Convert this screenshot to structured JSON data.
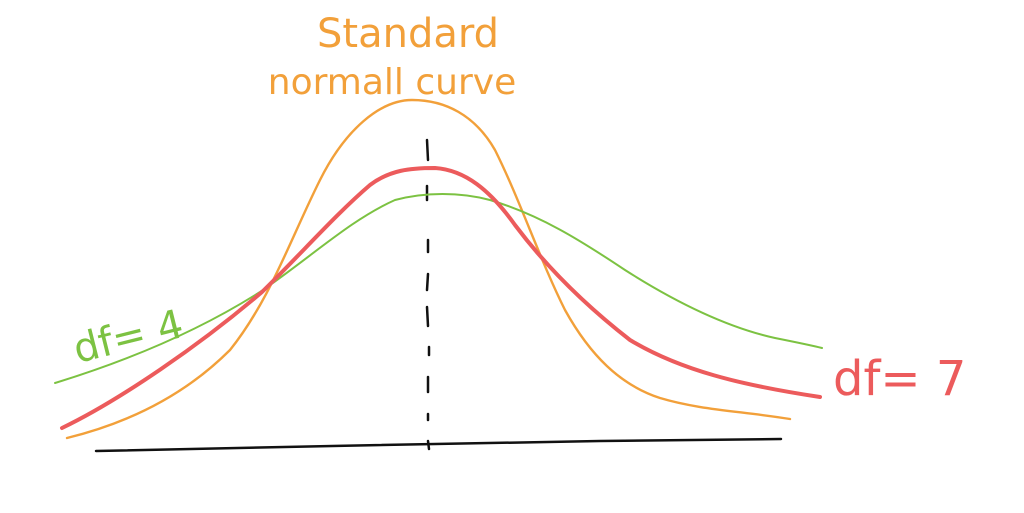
{
  "diagram": {
    "colors": {
      "normal": "#F2A03A",
      "t7": "#EC5B5C",
      "t4": "#7CC242",
      "axis": "#111111",
      "mean_line": "#111111",
      "background": "#FFFFFF"
    },
    "labels": {
      "normal_line1": "Standard",
      "normal_line2": "normall curve",
      "t4": "df= 4",
      "t7": "df= 7"
    }
  }
}
